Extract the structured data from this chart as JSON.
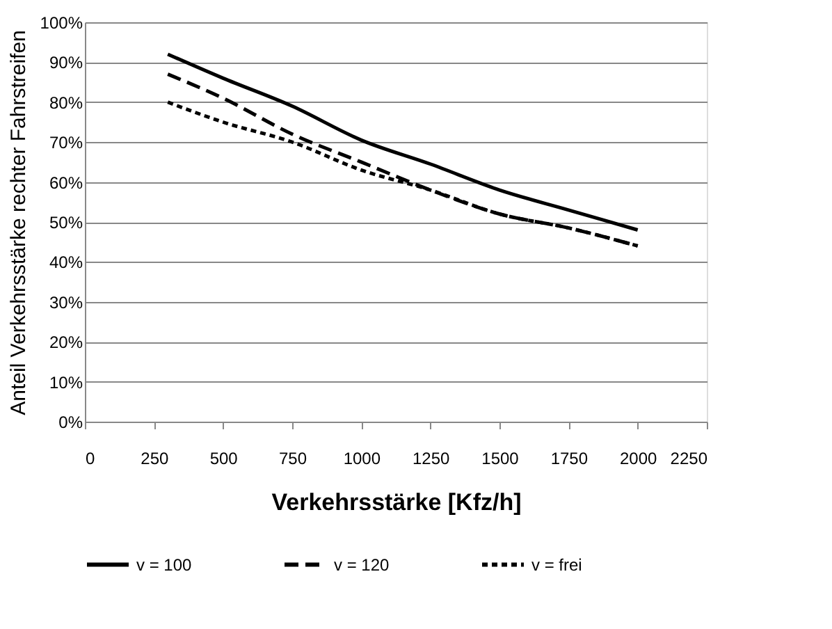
{
  "chart_data": {
    "type": "line",
    "xlabel": "Verkehrsstärke [Kfz/h]",
    "ylabel": "Anteil Verkehrsstärke rechter Fahrstreifen",
    "x": [
      300,
      500,
      750,
      1000,
      1250,
      1500,
      1750,
      2000
    ],
    "series": [
      {
        "name": "v = 100",
        "color": "#000000",
        "line_style": "solid",
        "values": [
          92,
          86,
          79,
          70.5,
          64.5,
          58,
          53,
          48
        ]
      },
      {
        "name": "v = 120",
        "color": "#000000",
        "line_style": "dashed",
        "values": [
          87,
          81,
          72,
          65,
          58,
          52,
          48.5,
          44
        ]
      },
      {
        "name": "v = frei",
        "color": "#000000",
        "line_style": "dotted",
        "values": [
          80,
          75,
          70,
          63,
          58,
          52,
          48.5,
          44
        ]
      }
    ],
    "xlim": [
      0,
      2250
    ],
    "xticks": [
      0,
      250,
      500,
      750,
      1000,
      1250,
      1500,
      1750,
      2000,
      2250
    ],
    "ylim": [
      0,
      100
    ],
    "yticks": [
      {
        "value": 0,
        "label": "0%"
      },
      {
        "value": 10,
        "label": "10%"
      },
      {
        "value": 20,
        "label": "20%"
      },
      {
        "value": 30,
        "label": "30%"
      },
      {
        "value": 40,
        "label": "40%"
      },
      {
        "value": 50,
        "label": "50%"
      },
      {
        "value": 60,
        "label": "60%"
      },
      {
        "value": 70,
        "label": "70%"
      },
      {
        "value": 80,
        "label": "80%"
      },
      {
        "value": 90,
        "label": "90%"
      },
      {
        "value": 100,
        "label": "100%"
      }
    ],
    "grid": "y",
    "legend": "bottom",
    "marker": "none"
  }
}
